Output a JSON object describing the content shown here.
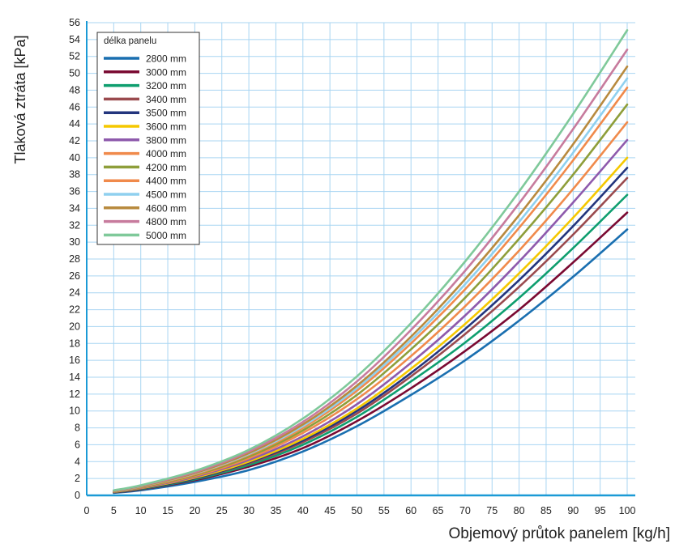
{
  "chart_data": {
    "type": "line",
    "xlabel": "Objemový průtok panelem [kg/h]",
    "ylabel": "Tlaková ztráta [kPa]",
    "xlim": [
      0,
      100
    ],
    "ylim": [
      0,
      56
    ],
    "x_ticks": [
      "0",
      "5",
      "10",
      "15",
      "20",
      "25",
      "30",
      "35",
      "40",
      "45",
      "50",
      "55",
      "60",
      "65",
      "70",
      "75",
      "80",
      "85",
      "90",
      "95",
      "100"
    ],
    "y_ticks": [
      "0",
      "2",
      "4",
      "6",
      "8",
      "10",
      "12",
      "14",
      "16",
      "18",
      "20",
      "22",
      "24",
      "26",
      "28",
      "30",
      "32",
      "34",
      "36",
      "38",
      "40",
      "42",
      "44",
      "46",
      "48",
      "50",
      "52",
      "54",
      "56"
    ],
    "grid": true,
    "legend_title": "délka panelu",
    "legend_position": "top-left",
    "x": [
      5,
      10,
      20,
      30,
      40,
      50,
      60,
      70,
      80,
      90,
      100
    ],
    "series": [
      {
        "name": "2800 mm",
        "color": "#1a6fb0",
        "values": [
          0.3,
          0.6,
          1.6,
          3.0,
          5.2,
          8.2,
          11.9,
          16.0,
          20.7,
          25.9,
          31.5
        ]
      },
      {
        "name": "3000 mm",
        "color": "#7a0a32",
        "values": [
          0.35,
          0.7,
          1.8,
          3.4,
          5.6,
          8.8,
          12.7,
          17.1,
          22.0,
          27.6,
          33.5
        ]
      },
      {
        "name": "3200 mm",
        "color": "#0e9e6e",
        "values": [
          0.38,
          0.75,
          1.9,
          3.6,
          6.0,
          9.3,
          13.5,
          18.1,
          23.4,
          29.3,
          35.6
        ]
      },
      {
        "name": "3400 mm",
        "color": "#9a4a4e",
        "values": [
          0.4,
          0.8,
          2.0,
          3.8,
          6.3,
          9.7,
          14.1,
          19.1,
          24.7,
          30.9,
          37.6
        ]
      },
      {
        "name": "3500 mm",
        "color": "#23357d",
        "values": [
          0.4,
          0.8,
          2.0,
          3.9,
          6.5,
          10.0,
          14.5,
          19.7,
          25.5,
          31.9,
          38.8
        ]
      },
      {
        "name": "3600 mm",
        "color": "#f5c800",
        "values": [
          0.42,
          0.85,
          2.1,
          4.0,
          6.7,
          10.3,
          15.0,
          20.3,
          26.3,
          32.9,
          40.0
        ]
      },
      {
        "name": "3800 mm",
        "color": "#8e5aac",
        "values": [
          0.45,
          0.9,
          2.2,
          4.2,
          7.0,
          10.8,
          15.7,
          21.3,
          27.7,
          34.7,
          42.1
        ]
      },
      {
        "name": "4000 mm",
        "color": "#f08a4b",
        "values": [
          0.47,
          0.95,
          2.3,
          4.4,
          7.4,
          11.4,
          16.5,
          22.4,
          29.0,
          36.3,
          44.2
        ]
      },
      {
        "name": "4200 mm",
        "color": "#8e9e3a",
        "values": [
          0.5,
          1.0,
          2.4,
          4.6,
          7.7,
          11.9,
          17.3,
          23.4,
          30.4,
          38.0,
          46.3
        ]
      },
      {
        "name": "4400 mm",
        "color": "#f08a4b",
        "values": [
          0.52,
          1.05,
          2.5,
          4.8,
          8.0,
          12.4,
          18.0,
          24.4,
          31.7,
          39.7,
          48.3
        ]
      },
      {
        "name": "4500 mm",
        "color": "#8fd0ef",
        "values": [
          0.53,
          1.07,
          2.6,
          4.9,
          8.2,
          12.7,
          18.4,
          25.0,
          32.4,
          40.6,
          49.4
        ]
      },
      {
        "name": "4600 mm",
        "color": "#b88a3e",
        "values": [
          0.55,
          1.1,
          2.65,
          5.0,
          8.4,
          13.0,
          18.8,
          25.6,
          33.2,
          41.6,
          50.8
        ]
      },
      {
        "name": "4800 mm",
        "color": "#c77b9d",
        "values": [
          0.57,
          1.15,
          2.75,
          5.2,
          8.7,
          13.5,
          19.6,
          26.6,
          34.6,
          43.4,
          52.8
        ]
      },
      {
        "name": "5000 mm",
        "color": "#7fc99a",
        "values": [
          0.6,
          1.2,
          2.9,
          5.4,
          9.1,
          14.1,
          20.4,
          27.7,
          36.0,
          45.2,
          55.1
        ]
      }
    ]
  }
}
